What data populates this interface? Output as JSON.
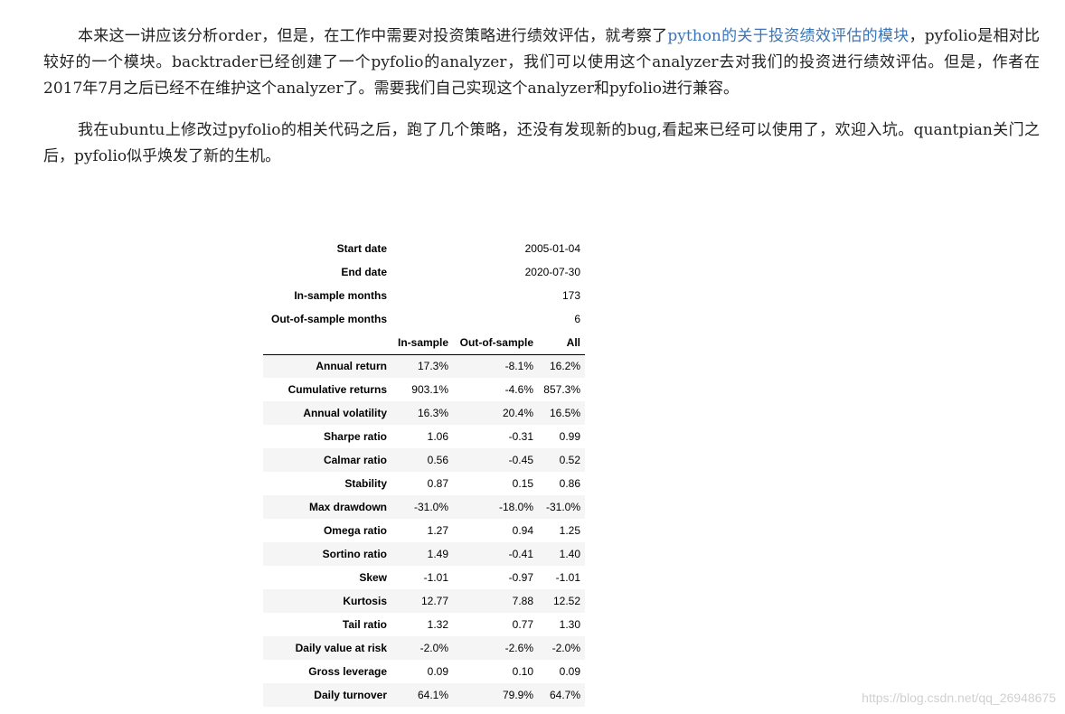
{
  "article": {
    "p1_before_link": "本来这一讲应该分析order，但是，在工作中需要对投资策略进行绩效评估，就考察了",
    "p1_link": "python的关于投资绩效评估的模块",
    "p1_after_link": "，pyfolio是相对比较好的一个模块。backtrader已经创建了一个pyfolio的analyzer，我们可以使用这个analyzer去对我们的投资进行绩效评估。但是，作者在2017年7月之后已经不在维护这个analyzer了。需要我们自己实现这个analyzer和pyfolio进行兼容。",
    "p2": "我在ubuntu上修改过pyfolio的相关代码之后，跑了几个策略，还没有发现新的bug,看起来已经可以使用了，欢迎入坑。quantpian关门之后，pyfolio似乎焕发了新的生机。",
    "link_color": "#3b74b6"
  },
  "table": {
    "info": [
      {
        "label": "Start date",
        "value": "2005-01-04"
      },
      {
        "label": "End date",
        "value": "2020-07-30"
      },
      {
        "label": "In-sample months",
        "value": "173"
      },
      {
        "label": "Out-of-sample months",
        "value": "6"
      }
    ],
    "headers": [
      "In-sample",
      "Out-of-sample",
      "All"
    ],
    "rows": [
      {
        "label": "Annual return",
        "v": [
          "17.3%",
          "-8.1%",
          "16.2%"
        ]
      },
      {
        "label": "Cumulative returns",
        "v": [
          "903.1%",
          "-4.6%",
          "857.3%"
        ]
      },
      {
        "label": "Annual volatility",
        "v": [
          "16.3%",
          "20.4%",
          "16.5%"
        ]
      },
      {
        "label": "Sharpe ratio",
        "v": [
          "1.06",
          "-0.31",
          "0.99"
        ]
      },
      {
        "label": "Calmar ratio",
        "v": [
          "0.56",
          "-0.45",
          "0.52"
        ]
      },
      {
        "label": "Stability",
        "v": [
          "0.87",
          "0.15",
          "0.86"
        ]
      },
      {
        "label": "Max drawdown",
        "v": [
          "-31.0%",
          "-18.0%",
          "-31.0%"
        ]
      },
      {
        "label": "Omega ratio",
        "v": [
          "1.27",
          "0.94",
          "1.25"
        ]
      },
      {
        "label": "Sortino ratio",
        "v": [
          "1.49",
          "-0.41",
          "1.40"
        ]
      },
      {
        "label": "Skew",
        "v": [
          "-1.01",
          "-0.97",
          "-1.01"
        ]
      },
      {
        "label": "Kurtosis",
        "v": [
          "12.77",
          "7.88",
          "12.52"
        ]
      },
      {
        "label": "Tail ratio",
        "v": [
          "1.32",
          "0.77",
          "1.30"
        ]
      },
      {
        "label": "Daily value at risk",
        "v": [
          "-2.0%",
          "-2.6%",
          "-2.0%"
        ]
      },
      {
        "label": "Gross leverage",
        "v": [
          "0.09",
          "0.10",
          "0.09"
        ]
      },
      {
        "label": "Daily turnover",
        "v": [
          "64.1%",
          "79.9%",
          "64.7%"
        ]
      }
    ]
  },
  "watermark": "https://blog.csdn.net/qq_26948675"
}
